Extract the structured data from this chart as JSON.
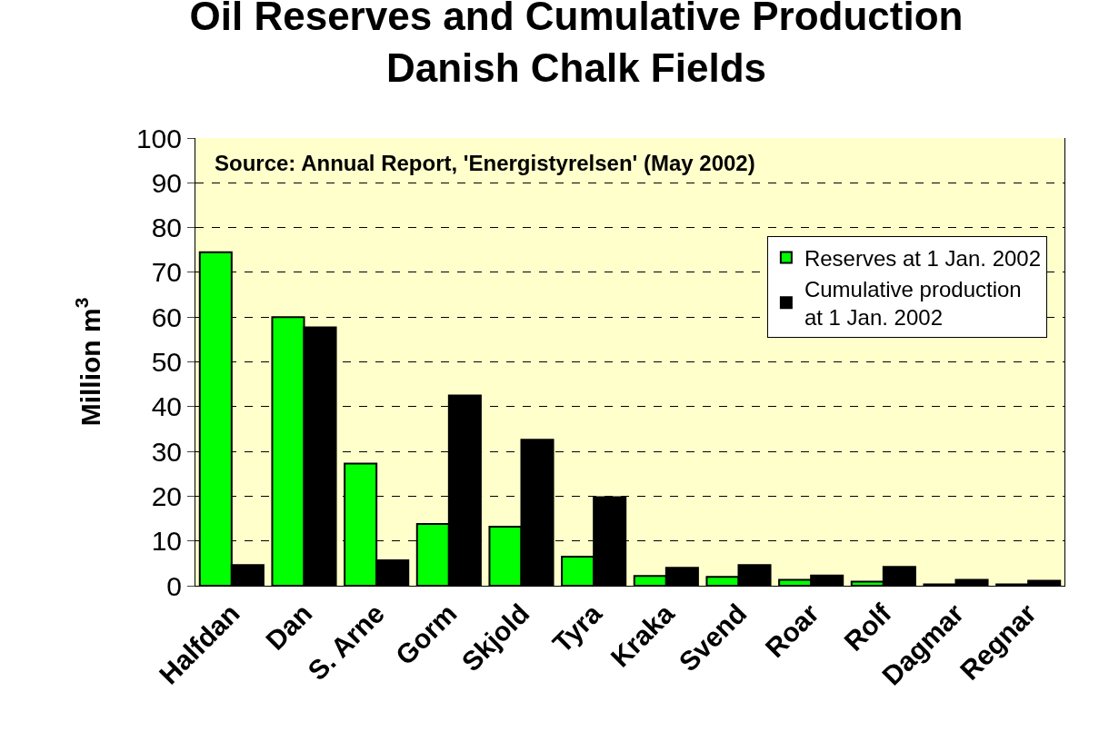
{
  "chart_data": {
    "type": "bar",
    "title": "Oil Reserves and Cumulative Production\nDanish Chalk Fields",
    "ylabel": "Million m$^{3}$",
    "annotations": [
      "Source: Annual Report, 'Energistyrelsen' (May 2002)"
    ],
    "categories": [
      "Halfdan",
      "Dan",
      "S. Arne",
      "Gorm",
      "Skjold",
      "Tyra",
      "Kraka",
      "Svend",
      "Roar",
      "Rolf",
      "Dagmar",
      "Regnar"
    ],
    "series": [
      {
        "name": "Reserves at 1 Jan. 2002",
        "color": "#00ff00",
        "values": [
          74.5,
          60,
          27.3,
          13.8,
          13.2,
          6.5,
          2.2,
          2,
          1.3,
          0.9,
          0.3,
          0.3
        ]
      },
      {
        "name": "Cumulative production\nat 1 Jan. 2002",
        "color": "#000000",
        "values": [
          4.6,
          57.7,
          5.7,
          42.5,
          32.6,
          19.8,
          4,
          4.6,
          2.3,
          4.2,
          1.3,
          1.1
        ]
      }
    ],
    "ylim": [
      0,
      100
    ],
    "yticks": [
      0,
      10,
      20,
      30,
      40,
      50,
      60,
      70,
      80,
      90,
      100
    ],
    "grid": "y",
    "legend": "top right"
  }
}
